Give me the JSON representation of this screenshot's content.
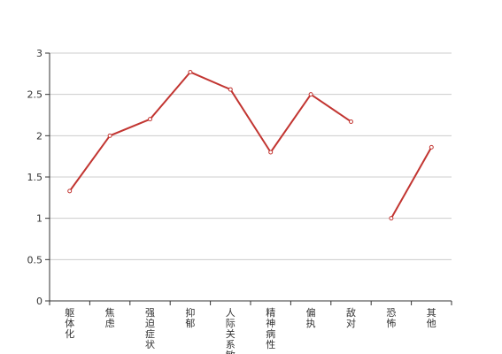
{
  "chart_data": {
    "type": "line",
    "title": "",
    "xlabel": "",
    "ylabel": "",
    "categories": [
      "躯体化",
      "焦虑",
      "强迫症状",
      "抑郁",
      "人际关系敏感",
      "精神病性",
      "偏执",
      "敌对",
      "恐怖",
      "其他"
    ],
    "series": [
      {
        "values": [
          1.33,
          2.0,
          2.2,
          2.77,
          2.56,
          1.8,
          2.5,
          2.17,
          1.0,
          1.86
        ],
        "color": "#c23531",
        "line_breaks_after_index": [
          7
        ]
      }
    ],
    "ylim": [
      0,
      3
    ],
    "yticks": [
      "0",
      "0.5",
      "1",
      "1.5",
      "2",
      "2.5",
      "3"
    ],
    "grid": true,
    "legend": "none"
  }
}
